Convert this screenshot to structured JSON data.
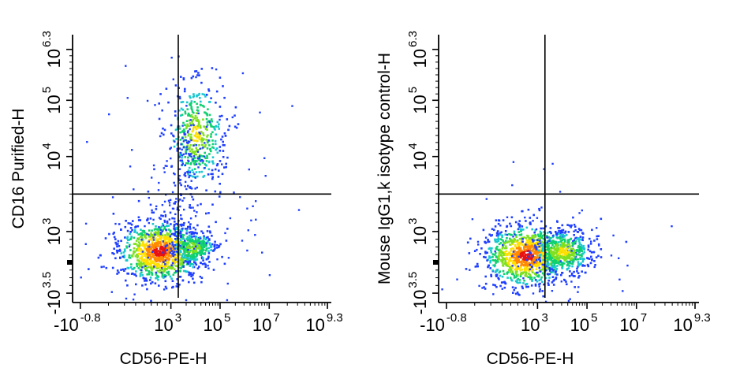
{
  "chart_data": [
    {
      "type": "scatter",
      "style": "density-dot-plot",
      "xlabel": "CD56-PE-H",
      "ylabel": "CD16 Purified-H",
      "x_ticks": [
        {
          "base": "-10",
          "exp": "-0.8"
        },
        {
          "base": "10",
          "exp": "3"
        },
        {
          "base": "10",
          "exp": "5"
        },
        {
          "base": "10",
          "exp": "7"
        },
        {
          "base": "10",
          "exp": "9.3"
        }
      ],
      "y_ticks": [
        {
          "base": "-10",
          "exp": "3.5"
        },
        {
          "base": "10",
          "exp": "3"
        },
        {
          "base": "10",
          "exp": "4"
        },
        {
          "base": "10",
          "exp": "5"
        },
        {
          "base": "10",
          "exp": "6.3"
        }
      ],
      "gate_x_log": 3.3,
      "gate_y_log": 3.5,
      "populations": [
        {
          "x_log": 2.5,
          "y_log": 2.75,
          "relative_size": 1.0
        },
        {
          "x_log": 4.0,
          "y_log": 4.4,
          "relative_size": 0.35
        },
        {
          "x_log": 3.9,
          "y_log": 2.8,
          "relative_size": 0.2
        }
      ]
    },
    {
      "type": "scatter",
      "style": "density-dot-plot",
      "xlabel": "CD56-PE-H",
      "ylabel": "Mouse IgG1,k isotype control-H",
      "x_ticks": [
        {
          "base": "-10",
          "exp": "-0.8"
        },
        {
          "base": "10",
          "exp": "3"
        },
        {
          "base": "10",
          "exp": "5"
        },
        {
          "base": "10",
          "exp": "7"
        },
        {
          "base": "10",
          "exp": "9.3"
        }
      ],
      "y_ticks": [
        {
          "base": "-10",
          "exp": "3.5"
        },
        {
          "base": "10",
          "exp": "3"
        },
        {
          "base": "10",
          "exp": "4"
        },
        {
          "base": "10",
          "exp": "5"
        },
        {
          "base": "10",
          "exp": "6.3"
        }
      ],
      "gate_x_log": 3.3,
      "gate_y_log": 3.5,
      "populations": [
        {
          "x_log": 2.5,
          "y_log": 2.7,
          "relative_size": 1.0
        },
        {
          "x_log": 4.0,
          "y_log": 2.75,
          "relative_size": 0.4
        }
      ]
    }
  ],
  "colors": {
    "axis": "#000000",
    "density_low": "#1f3fff",
    "density_mid": "#18c8d0",
    "density_high": "#ffe000",
    "density_peak": "#e81010"
  }
}
